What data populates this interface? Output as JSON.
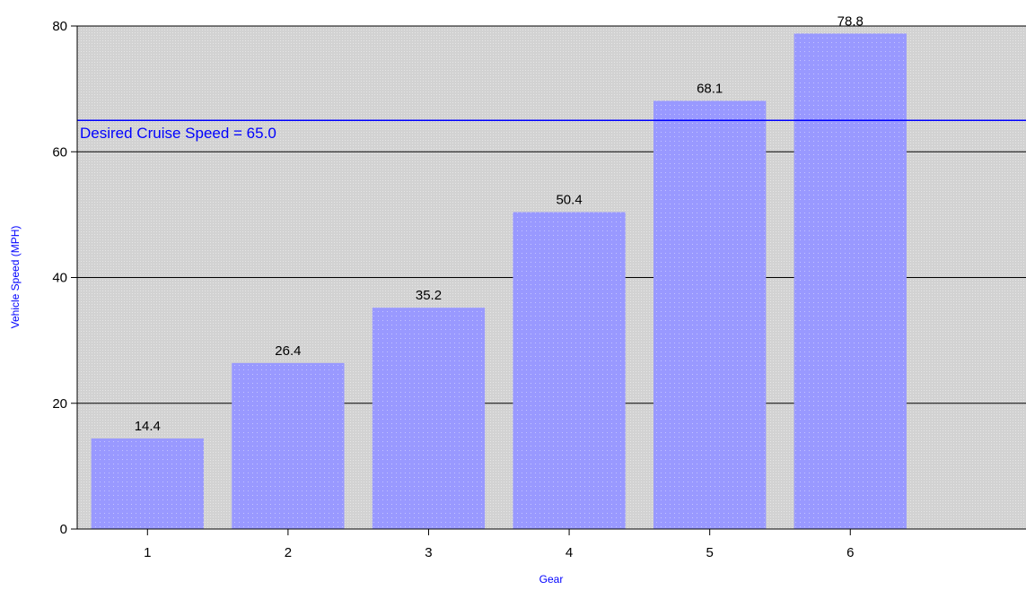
{
  "chart_data": {
    "type": "bar",
    "categories": [
      "1",
      "2",
      "3",
      "4",
      "5",
      "6"
    ],
    "values": [
      14.4,
      26.4,
      35.2,
      50.4,
      68.1,
      78.8
    ],
    "value_labels": [
      "14.4",
      "26.4",
      "35.2",
      "50.4",
      "68.1",
      "78.8"
    ],
    "xlabel": "Gear",
    "ylabel": "Vehicle Speed (MPH)",
    "ylim": [
      0,
      80
    ],
    "x_range": [
      0.5,
      7.25
    ],
    "yticks": [
      0,
      20,
      40,
      60,
      80
    ],
    "ytick_labels": [
      "0",
      "20",
      "40",
      "60",
      "80"
    ],
    "grid": true,
    "reference_line": {
      "value": 65.0,
      "label": "Desired Cruise Speed = 65.0"
    }
  },
  "colors": {
    "bar": "#9999FF",
    "plot_background": "#D4D4D4",
    "reference_line": "#0000FF",
    "axis_title": "#0000FF",
    "grid": "#000000"
  }
}
